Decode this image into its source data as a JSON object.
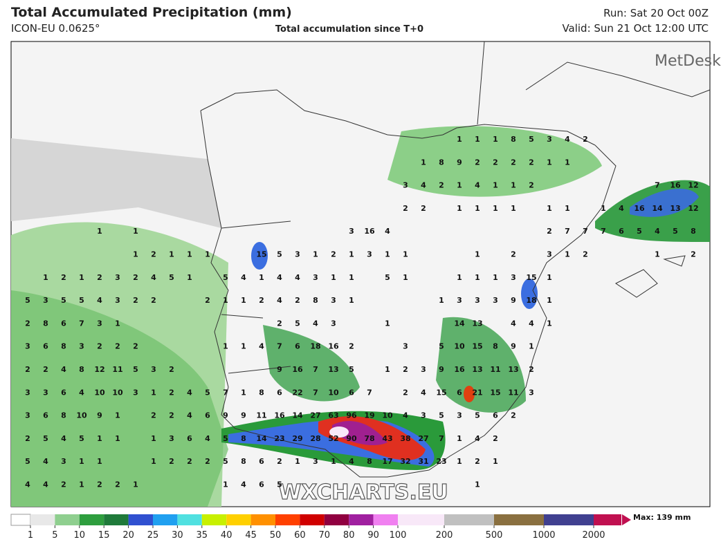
{
  "header": {
    "title": "Total Accumulated Precipitation (mm)",
    "model": "ICON-EU 0.0625°",
    "subtitle": "Total accumulation since T+0",
    "run": "Run: Sat 20 Oct 00Z",
    "valid": "Valid: Sun 21 Oct 12:00 UTC"
  },
  "logo": "MetDesk",
  "watermark": "WXCHARTS.EU",
  "map_labels": [
    [
      1,
      1,
      1,
      8,
      5,
      3,
      4,
      2
    ],
    [
      1,
      8,
      9,
      2,
      2,
      2,
      2,
      1,
      1
    ],
    [
      3,
      4,
      2,
      1,
      4,
      1,
      1,
      2,
      7,
      16,
      12
    ],
    [
      2,
      2,
      1,
      1,
      1,
      1,
      1,
      1,
      1,
      4,
      16,
      14,
      13,
      12
    ],
    [
      1,
      1,
      3,
      16,
      4,
      2,
      7,
      7,
      7,
      6,
      5,
      4,
      5,
      8
    ],
    [
      1,
      2,
      1,
      1,
      1,
      15,
      5,
      3,
      1,
      2,
      1,
      3,
      1,
      1,
      1,
      2,
      3,
      1,
      2,
      1,
      2
    ],
    [
      1,
      2,
      1,
      2,
      3,
      2,
      4,
      5,
      1,
      5,
      4,
      1,
      4,
      4,
      3,
      1,
      1,
      5,
      1,
      1,
      1,
      1,
      3,
      15,
      1
    ],
    [
      5,
      3,
      5,
      5,
      4,
      3,
      2,
      2,
      2,
      1,
      1,
      2,
      4,
      2,
      8,
      3,
      1,
      1,
      3,
      3,
      3,
      9,
      18,
      1
    ],
    [
      2,
      8,
      6,
      7,
      3,
      1,
      2,
      5,
      4,
      3,
      1,
      14,
      13,
      4,
      4,
      1
    ],
    [
      3,
      6,
      8,
      3,
      2,
      2,
      2,
      1,
      1,
      4,
      7,
      6,
      18,
      16,
      2,
      3,
      5,
      10,
      15,
      8,
      9,
      1
    ],
    [
      2,
      2,
      4,
      8,
      12,
      11,
      5,
      3,
      2,
      9,
      16,
      7,
      13,
      5,
      1,
      2,
      3,
      9,
      16,
      13,
      11,
      13,
      2
    ],
    [
      3,
      3,
      6,
      4,
      10,
      10,
      3,
      1,
      2,
      4,
      5,
      7,
      1,
      8,
      6,
      22,
      7,
      10,
      6,
      7,
      2,
      4,
      15,
      6,
      21,
      15,
      11,
      3
    ],
    [
      3,
      6,
      8,
      10,
      9,
      1,
      2,
      2,
      4,
      6,
      9,
      9,
      11,
      16,
      14,
      27,
      63,
      96,
      19,
      10,
      4,
      3,
      5,
      3,
      5,
      6,
      2
    ],
    [
      2,
      5,
      4,
      5,
      1,
      1,
      1,
      3,
      6,
      4,
      5,
      8,
      14,
      23,
      29,
      28,
      52,
      90,
      78,
      43,
      38,
      27,
      7,
      1,
      4,
      2
    ],
    [
      5,
      4,
      3,
      1,
      1,
      1,
      2,
      2,
      2,
      5,
      8,
      6,
      2,
      1,
      3,
      1,
      4,
      8,
      17,
      32,
      31,
      23,
      1,
      2,
      1
    ],
    [
      4,
      4,
      2,
      1,
      2,
      2,
      1,
      1,
      4,
      6,
      5,
      1
    ]
  ],
  "colorbar": {
    "levels": [
      1,
      5,
      10,
      15,
      20,
      25,
      30,
      35,
      40,
      45,
      50,
      60,
      70,
      80,
      90,
      100,
      200,
      500,
      1000,
      2000
    ],
    "colors": [
      "#e8e8e8",
      "#8fcf8f",
      "#2e9e3e",
      "#1f7a3a",
      "#3050d0",
      "#20a0f0",
      "#50e0e0",
      "#c8f000",
      "#ffd000",
      "#ff9000",
      "#ff4000",
      "#d00000",
      "#900040",
      "#a020a0",
      "#f080f0",
      "#f8e8f8",
      "#c0c0c0",
      "#8a7040",
      "#404090",
      "#c01050"
    ],
    "max_label": "Max: 139 mm"
  }
}
